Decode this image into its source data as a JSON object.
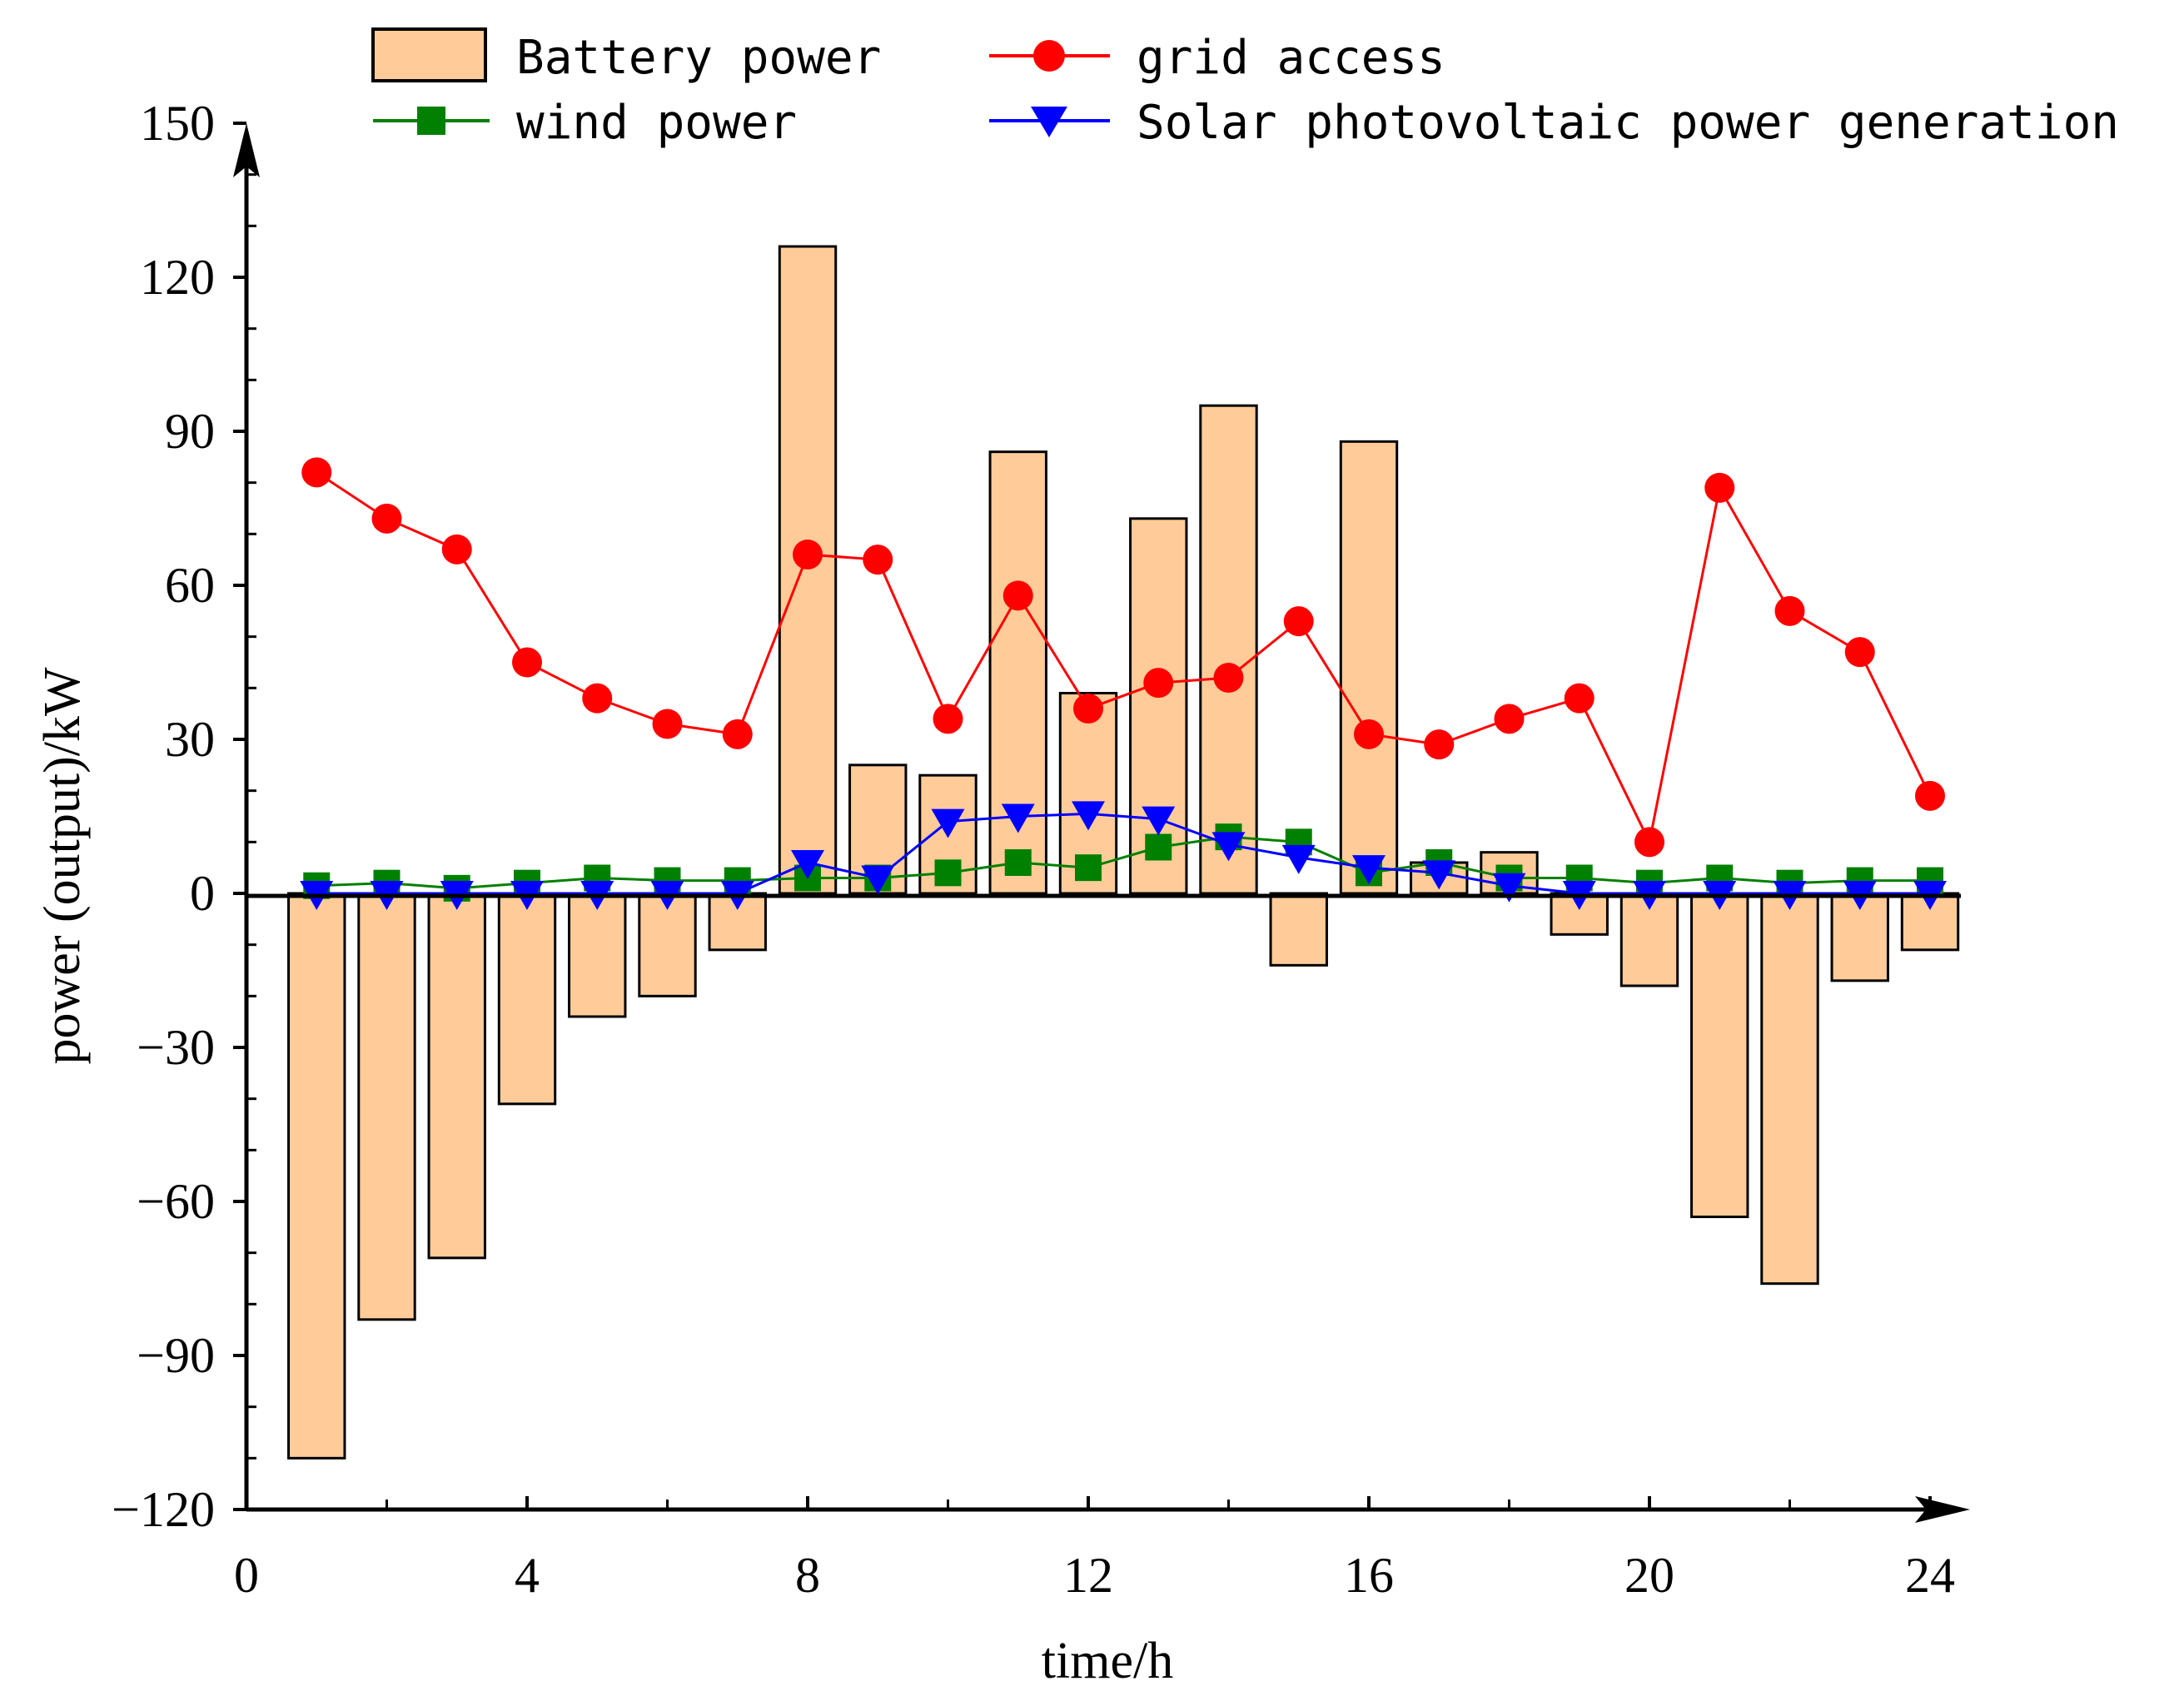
{
  "chart_data": {
    "type": "bar",
    "xlabel": "time/h",
    "ylabel": "power (output)/kW",
    "xlim": [
      0,
      24.5
    ],
    "ylim": [
      -120,
      150
    ],
    "xticks": [
      0,
      4,
      8,
      12,
      16,
      20,
      24
    ],
    "yticks": [
      -120,
      -90,
      -60,
      -30,
      0,
      30,
      60,
      90,
      120,
      150
    ],
    "x": [
      1,
      2,
      3,
      4,
      5,
      6,
      7,
      8,
      9,
      10,
      11,
      12,
      13,
      14,
      15,
      16,
      17,
      18,
      19,
      20,
      21,
      22,
      23,
      24
    ],
    "series": [
      {
        "name": "Battery power",
        "kind": "bar",
        "color": "#FFCC99",
        "values": [
          -110,
          -83,
          -71,
          -41,
          -24,
          -20,
          -11,
          126,
          25,
          23,
          86,
          39,
          73,
          95,
          -14,
          88,
          6,
          8,
          -8,
          -18,
          -63,
          -76,
          -17,
          -11
        ]
      },
      {
        "name": "grid access",
        "kind": "line",
        "marker": "circle",
        "color": "#FF0000",
        "values": [
          82,
          73,
          67,
          45,
          38,
          33,
          31,
          66,
          65,
          34,
          58,
          36,
          41,
          42,
          53,
          31,
          29,
          34,
          38,
          10,
          79,
          55,
          47,
          19
        ]
      },
      {
        "name": "wind power",
        "kind": "line",
        "marker": "square",
        "color": "#008000",
        "values": [
          1.5,
          2,
          1,
          2,
          3,
          2.5,
          2.5,
          3,
          3,
          4,
          6,
          5,
          9,
          11,
          10,
          4,
          6,
          3,
          3,
          2,
          3,
          2,
          2.5,
          2.5
        ]
      },
      {
        "name": "Solar photovoltaic power generation",
        "kind": "line",
        "marker": "triangle-down",
        "color": "#0000FF",
        "values": [
          0,
          0,
          0,
          0,
          0,
          0,
          0,
          6,
          3,
          14,
          15,
          15.5,
          14.5,
          9.5,
          7,
          5,
          4,
          1.5,
          0,
          0,
          0,
          0,
          0,
          0
        ]
      }
    ],
    "legend": {
      "placement": "top"
    }
  }
}
